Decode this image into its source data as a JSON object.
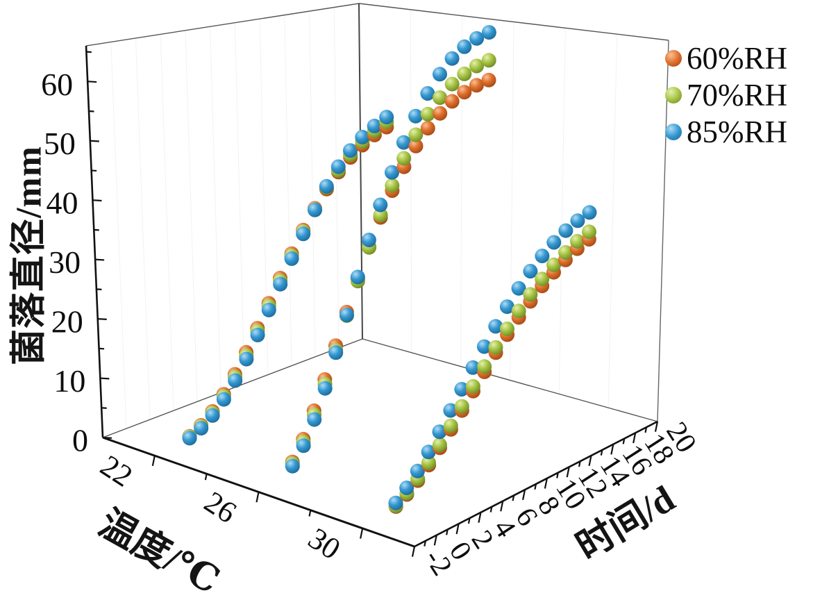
{
  "legend": {
    "items": [
      {
        "label": "60%RH"
      },
      {
        "label": "70%RH"
      },
      {
        "label": "85%RH"
      }
    ]
  },
  "chart_data": {
    "type": "scatter",
    "subtype": "3d-scatter",
    "title": "",
    "x_axis": {
      "label": "温度/℃",
      "major_ticks": [
        22,
        26,
        30
      ],
      "minor_ticks": [
        24,
        28
      ],
      "range": [
        20,
        32
      ]
    },
    "y_axis": {
      "label": "时间/d",
      "tick_labels": [
        -2,
        0,
        2,
        4,
        6,
        8,
        10,
        12,
        14,
        16,
        18,
        20
      ],
      "minor_step": 1,
      "range": [
        -2,
        20
      ]
    },
    "z_axis": {
      "label": "菌落直径/mm",
      "major_ticks": [
        0,
        10,
        20,
        30,
        40,
        50,
        60
      ],
      "minor_step": 5,
      "range": [
        0,
        66
      ]
    },
    "legend_position": "top-right",
    "grid": "faint-wall-lines",
    "days": [
      1,
      2,
      3,
      4,
      5,
      6,
      7,
      8,
      9,
      10,
      11,
      12,
      13,
      14,
      15,
      16,
      17,
      18
    ],
    "series": [
      {
        "name": "60%RH",
        "color": "#df6e2b",
        "highlight": "#f8c197",
        "shadow": "#9a4412",
        "groups": [
          {
            "temperature": 22,
            "values": [
              0.9,
              2.0,
              3.6,
              5.8,
              8.5,
              11.6,
              15.1,
              18.8,
              22.6,
              26.3,
              29.9,
              33.2,
              36.1,
              38.6,
              40.7,
              42.4,
              43.7,
              44.6
            ]
          },
          {
            "temperature": 26,
            "values": [
              2.5,
              5.5,
              9.5,
              14,
              19,
              24,
              29,
              33.8,
              38.2,
              42.2,
              45.7,
              48.7,
              51.2,
              53.2,
              54.7,
              55.7,
              56.3,
              56.6
            ]
          },
          {
            "temperature": 30,
            "values": [
              0.9,
              2.0,
              3.4,
              5.1,
              7.1,
              9.3,
              11.6,
              14.0,
              16.4,
              18.8,
              21.0,
              23.1,
              25.0,
              26.8,
              28.3,
              29.6,
              30.7,
              31.5
            ]
          }
        ]
      },
      {
        "name": "70%RH",
        "color": "#a8c445",
        "highlight": "#e4f0ae",
        "shadow": "#66821f",
        "groups": [
          {
            "temperature": 22,
            "values": [
              0.8,
              1.8,
              3.3,
              5.4,
              8.0,
              11.0,
              14.6,
              18.3,
              22.1,
              25.9,
              29.6,
              33.0,
              36.4,
              38.9,
              41.2,
              43.1,
              44.5,
              45.6
            ]
          },
          {
            "temperature": 26,
            "values": [
              2.2,
              5.0,
              8.8,
              13.2,
              18.2,
              23.4,
              28.6,
              33.7,
              38.6,
              43.1,
              47.2,
              50.7,
              53.7,
              56.0,
              57.8,
              59.0,
              59.8,
              60.2
            ]
          },
          {
            "temperature": 30,
            "values": [
              1.0,
              2.2,
              3.7,
              5.5,
              7.6,
              9.9,
              12.3,
              14.8,
              17.3,
              19.7,
              22.0,
              24.2,
              26.2,
              28.0,
              29.6,
              30.9,
              32.0,
              32.8
            ]
          }
        ]
      },
      {
        "name": "85%RH",
        "color": "#3598d1",
        "highlight": "#aedcf5",
        "shadow": "#186492",
        "groups": [
          {
            "temperature": 22,
            "values": [
              0.6,
              1.5,
              2.9,
              4.9,
              7.4,
              10.4,
              13.9,
              17.6,
              21.5,
              25.4,
              29.2,
              32.9,
              36.6,
              39.6,
              42.0,
              43.9,
              45.4,
              46.5
            ]
          },
          {
            "temperature": 26,
            "values": [
              1.8,
              4.4,
              8.0,
              12.5,
              17.8,
              23.5,
              29.3,
              35.0,
              40.4,
              45.4,
              50.0,
              54.0,
              57.4,
              60.2,
              62.4,
              63.9,
              64.8,
              65.3
            ]
          },
          {
            "temperature": 30,
            "values": [
              1.5,
              3.1,
              5.0,
              7.3,
              9.8,
              12.5,
              15.2,
              18.0,
              20.7,
              23.3,
              25.8,
              28.1,
              30.2,
              32.0,
              33.5,
              34.7,
              35.6,
              36.2
            ]
          }
        ]
      }
    ]
  }
}
